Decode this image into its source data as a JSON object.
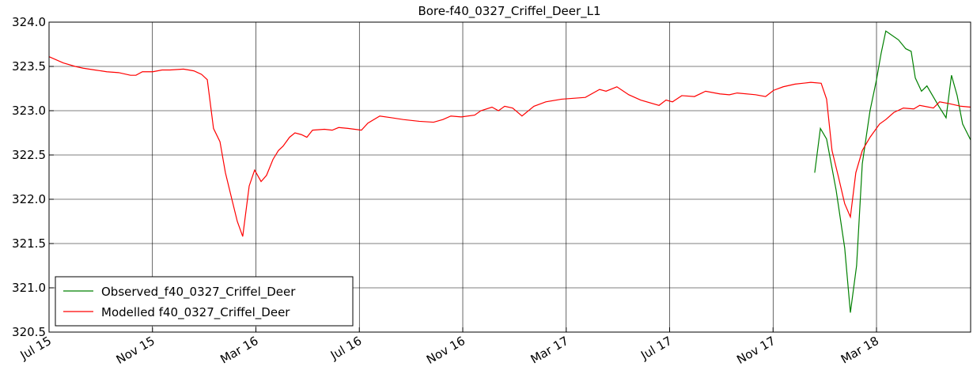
{
  "chart_data": {
    "type": "line",
    "title": "Bore-f40_0327_Criffel_Deer_L1",
    "xlim": [
      0,
      35.64
    ],
    "xticks": [
      {
        "value": 0,
        "label": "Jul 15"
      },
      {
        "value": 4,
        "label": "Nov 15"
      },
      {
        "value": 8,
        "label": "Mar 16"
      },
      {
        "value": 12,
        "label": "Jul 16"
      },
      {
        "value": 16,
        "label": "Nov 16"
      },
      {
        "value": 20,
        "label": "Mar 17"
      },
      {
        "value": 24,
        "label": "Jul 17"
      },
      {
        "value": 28,
        "label": "Nov 17"
      },
      {
        "value": 32,
        "label": "Mar 18"
      }
    ],
    "ylim": [
      320.5,
      324.0
    ],
    "yticks": [
      {
        "value": 324,
        "label": "324.0"
      },
      323.5,
      {
        "value": 323,
        "label": "323.0"
      },
      322.5,
      {
        "value": 322,
        "label": "322.0"
      },
      321.5,
      {
        "value": 321,
        "label": "321.0"
      },
      320.5
    ],
    "grid": true,
    "legend": "lower left",
    "series": [
      {
        "name": "Observed_f40_0327_Criffel_Deer",
        "color": "#008000",
        "x": [
          29.61,
          29.83,
          30.07,
          30.44,
          30.77,
          30.99,
          31.23,
          31.45,
          31.75,
          32.0,
          32.18,
          32.36,
          32.85,
          33.13,
          33.34,
          33.5,
          33.74,
          33.95,
          34.41,
          34.69,
          34.9,
          35.12,
          35.33,
          35.64
        ],
        "values": [
          322.3,
          322.8,
          322.68,
          322.1,
          321.45,
          320.72,
          321.25,
          322.4,
          323.0,
          323.35,
          323.65,
          323.9,
          323.8,
          323.7,
          323.67,
          323.37,
          323.22,
          323.28,
          323.05,
          322.92,
          323.4,
          323.17,
          322.85,
          322.67
        ]
      },
      {
        "name": "Modelled f40_0327_Criffel_Deer",
        "color": "#ff0000",
        "x": [
          0,
          0.55,
          1.01,
          1.32,
          1.77,
          2.23,
          2.69,
          3.15,
          3.36,
          3.61,
          4.01,
          4.37,
          4.68,
          5.2,
          5.6,
          5.9,
          6.12,
          6.36,
          6.61,
          6.82,
          7.07,
          7.28,
          7.49,
          7.74,
          7.95,
          8.2,
          8.41,
          8.66,
          8.87,
          9.05,
          9.3,
          9.51,
          9.76,
          9.97,
          10.19,
          10.65,
          10.95,
          11.2,
          11.56,
          12.08,
          12.33,
          12.79,
          13.25,
          13.7,
          14.32,
          14.87,
          15.23,
          15.54,
          15.94,
          16.46,
          16.7,
          17.13,
          17.38,
          17.62,
          17.93,
          18.29,
          18.75,
          19.21,
          19.82,
          20.74,
          21.29,
          21.54,
          21.96,
          22.42,
          22.88,
          23.59,
          23.86,
          24.11,
          24.47,
          24.96,
          25.39,
          25.94,
          26.31,
          26.61,
          27.32,
          27.71,
          28.02,
          28.39,
          28.85,
          29.46,
          29.86,
          30.07,
          30.28,
          30.53,
          30.77,
          30.99,
          31.2,
          31.45,
          31.75,
          32.12,
          32.36,
          32.67,
          33.04,
          33.44,
          33.67,
          34.2,
          34.44,
          34.81,
          35.27,
          35.64
        ],
        "values": [
          323.61,
          323.54,
          323.5,
          323.48,
          323.46,
          323.44,
          323.43,
          323.4,
          323.4,
          323.44,
          323.44,
          323.46,
          323.46,
          323.47,
          323.45,
          323.41,
          323.35,
          322.8,
          322.65,
          322.3,
          322.0,
          321.75,
          321.58,
          322.15,
          322.33,
          322.2,
          322.27,
          322.45,
          322.55,
          322.6,
          322.7,
          322.75,
          322.73,
          322.7,
          322.78,
          322.79,
          322.78,
          322.81,
          322.8,
          322.78,
          322.86,
          322.94,
          322.92,
          322.9,
          322.88,
          322.87,
          322.9,
          322.94,
          322.93,
          322.95,
          323.0,
          323.04,
          323.0,
          323.05,
          323.03,
          322.94,
          323.05,
          323.1,
          323.13,
          323.15,
          323.24,
          323.22,
          323.27,
          323.18,
          323.12,
          323.06,
          323.12,
          323.1,
          323.17,
          323.16,
          323.22,
          323.19,
          323.18,
          323.2,
          323.18,
          323.16,
          323.23,
          323.27,
          323.3,
          323.32,
          323.31,
          323.13,
          322.55,
          322.25,
          321.95,
          321.8,
          322.3,
          322.55,
          322.7,
          322.85,
          322.9,
          322.98,
          323.03,
          323.02,
          323.06,
          323.03,
          323.1,
          323.08,
          323.05,
          323.04
        ]
      }
    ]
  }
}
